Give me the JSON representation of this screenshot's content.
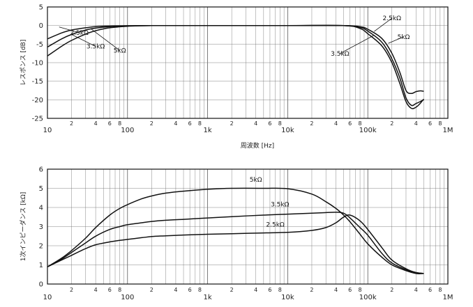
{
  "chart_data": [
    {
      "type": "line",
      "xscale": "log",
      "xlim": [
        10,
        1000000
      ],
      "ylim": [
        -25,
        5
      ],
      "yticks": [
        5,
        0,
        -5,
        -10,
        -15,
        -20,
        -25
      ],
      "ylabel": "レスポンス [dB]",
      "xlabel": "周波数 [Hz]",
      "x_major_labels": [
        "10",
        "100",
        "1k",
        "10k",
        "100k",
        "1M"
      ],
      "x_minor_labels": [
        "2",
        "4",
        "6",
        "8"
      ],
      "series": [
        {
          "name": "2.5kΩ",
          "x": [
            10,
            15,
            20,
            30,
            40,
            60,
            100,
            200,
            1000,
            10000,
            50000,
            80000,
            100000,
            150000,
            200000,
            250000,
            300000,
            350000,
            400000,
            450000,
            500000
          ],
          "y": [
            -3.6,
            -2.0,
            -1.2,
            -0.6,
            -0.3,
            -0.12,
            -0.05,
            0,
            0,
            0,
            0,
            -0.3,
            -1.0,
            -3.5,
            -7.5,
            -12.5,
            -17.5,
            -18.3,
            -17.8,
            -17.6,
            -17.7
          ]
        },
        {
          "name": "3.5kΩ",
          "x": [
            10,
            15,
            20,
            30,
            40,
            60,
            100,
            200,
            1000,
            10000,
            50000,
            80000,
            100000,
            150000,
            200000,
            250000,
            300000,
            350000,
            400000,
            450000,
            500000
          ],
          "y": [
            -5.8,
            -3.6,
            -2.4,
            -1.2,
            -0.7,
            -0.3,
            -0.1,
            0,
            0,
            0,
            0,
            -0.5,
            -1.5,
            -4.5,
            -9.0,
            -14.0,
            -19.5,
            -21.5,
            -21.0,
            -20.5,
            -20.0
          ]
        },
        {
          "name": "5kΩ",
          "x": [
            10,
            15,
            20,
            30,
            40,
            60,
            100,
            200,
            1000,
            10000,
            50000,
            80000,
            100000,
            150000,
            200000,
            250000,
            300000,
            350000,
            400000,
            450000,
            500000
          ],
          "y": [
            -8.2,
            -5.6,
            -4.0,
            -2.3,
            -1.4,
            -0.6,
            -0.2,
            0,
            0,
            0,
            0,
            -0.8,
            -2.2,
            -5.5,
            -10.0,
            -15.5,
            -20.5,
            -22.3,
            -22.0,
            -21.0,
            -19.8
          ]
        }
      ],
      "labels": [
        {
          "text": "2.5kΩ",
          "series": "2.5kΩ",
          "at": [
            25,
            -2.5
          ],
          "anchor": [
            14,
            -0.4
          ]
        },
        {
          "text": "3.5kΩ",
          "series": "3.5kΩ",
          "at": [
            40,
            -6.2
          ],
          "anchor": [
            20,
            -2.4
          ]
        },
        {
          "text": "5kΩ",
          "series": "5kΩ",
          "at": [
            80,
            -7.3
          ],
          "anchor": [
            35,
            -0.9
          ]
        },
        {
          "text": "2.5kΩ",
          "series": "2.5kΩ",
          "at": [
            200000,
            1.4
          ],
          "anchor": [
            120000,
            -1.6
          ]
        },
        {
          "text": "5kΩ",
          "series": "5kΩ",
          "at": [
            280000,
            -3.6
          ],
          "anchor": [
            180000,
            -4.8
          ]
        },
        {
          "text": "3.5kΩ",
          "series": "3.5kΩ",
          "at": [
            45000,
            -8.1
          ],
          "anchor": [
            120000,
            -2.6
          ]
        }
      ]
    },
    {
      "type": "line",
      "xscale": "log",
      "xlim": [
        10,
        1000000
      ],
      "ylim": [
        0,
        6
      ],
      "yticks": [
        0,
        1,
        2,
        3,
        4,
        5,
        6
      ],
      "ylabel": "1次インピーダンス [kΩ]",
      "xlabel": "",
      "x_major_labels": [
        "10",
        "100",
        "1k",
        "10k",
        "100k",
        "1M"
      ],
      "x_minor_labels": [
        "2",
        "4",
        "6",
        "8"
      ],
      "series": [
        {
          "name": "5kΩ",
          "x": [
            10,
            15,
            20,
            30,
            40,
            60,
            80,
            100,
            150,
            200,
            300,
            500,
            1000,
            2000,
            5000,
            10000,
            20000,
            30000,
            40000,
            50000,
            60000,
            80000,
            100000,
            150000,
            200000,
            300000,
            400000,
            500000
          ],
          "y": [
            0.9,
            1.35,
            1.75,
            2.4,
            2.95,
            3.6,
            3.95,
            4.15,
            4.45,
            4.6,
            4.75,
            4.85,
            4.95,
            5.0,
            5.0,
            4.98,
            4.7,
            4.3,
            3.95,
            3.6,
            3.25,
            2.6,
            2.1,
            1.4,
            1.0,
            0.7,
            0.55,
            0.55
          ]
        },
        {
          "name": "3.5kΩ",
          "x": [
            10,
            15,
            20,
            30,
            40,
            60,
            80,
            100,
            150,
            200,
            300,
            500,
            1000,
            2000,
            5000,
            10000,
            20000,
            30000,
            40000,
            50000,
            60000,
            80000,
            100000,
            150000,
            200000,
            300000,
            400000,
            500000
          ],
          "y": [
            0.9,
            1.3,
            1.65,
            2.15,
            2.5,
            2.85,
            3.0,
            3.1,
            3.2,
            3.27,
            3.33,
            3.38,
            3.45,
            3.52,
            3.6,
            3.65,
            3.7,
            3.73,
            3.75,
            3.7,
            3.45,
            2.95,
            2.55,
            1.6,
            1.1,
            0.75,
            0.6,
            0.55
          ]
        },
        {
          "name": "2.5kΩ",
          "x": [
            10,
            15,
            20,
            30,
            40,
            60,
            80,
            100,
            150,
            200,
            300,
            500,
            1000,
            2000,
            5000,
            10000,
            20000,
            30000,
            40000,
            50000,
            60000,
            80000,
            100000,
            150000,
            200000,
            300000,
            400000,
            500000
          ],
          "y": [
            0.9,
            1.25,
            1.5,
            1.85,
            2.05,
            2.2,
            2.28,
            2.33,
            2.42,
            2.48,
            2.52,
            2.56,
            2.6,
            2.63,
            2.67,
            2.7,
            2.8,
            2.95,
            3.2,
            3.5,
            3.6,
            3.3,
            2.85,
            1.9,
            1.25,
            0.8,
            0.6,
            0.55
          ]
        }
      ],
      "labels": [
        {
          "text": "5kΩ",
          "series": "5kΩ",
          "at": [
            4000,
            5.35
          ]
        },
        {
          "text": "3.5kΩ",
          "series": "3.5kΩ",
          "at": [
            8000,
            4.05
          ]
        },
        {
          "text": "2.5kΩ",
          "series": "2.5kΩ",
          "at": [
            7000,
            3.0
          ]
        }
      ]
    }
  ]
}
